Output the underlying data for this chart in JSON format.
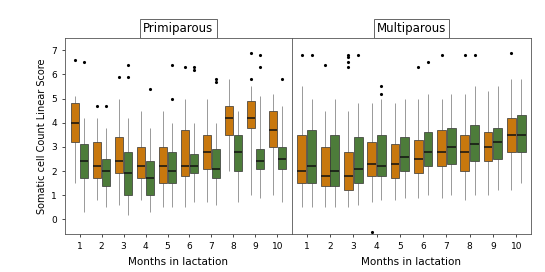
{
  "green_color": "#4d7c3a",
  "orange_color": "#c8780e",
  "whisker_color": "#999999",
  "background": "#ffffff",
  "panel_header_bg": "#f0f0f0",
  "prim_label": "Primiparous",
  "multi_label": "Multiparous",
  "xlabel": "Months in lactation",
  "ylabel": "Somatic cell Count Linear Score",
  "ylim": [
    -0.6,
    7.5
  ],
  "yticks": [
    0,
    1,
    2,
    3,
    4,
    5,
    6,
    7
  ],
  "months": [
    1,
    2,
    3,
    4,
    5,
    6,
    7,
    8,
    9,
    10
  ],
  "prim_orange": {
    "q1": [
      3.2,
      1.7,
      1.9,
      1.7,
      1.5,
      1.8,
      2.1,
      3.5,
      3.8,
      3.0
    ],
    "median": [
      4.0,
      2.2,
      2.4,
      2.2,
      2.2,
      2.2,
      2.8,
      4.2,
      4.2,
      3.7
    ],
    "q3": [
      4.8,
      3.2,
      3.4,
      3.0,
      3.0,
      3.7,
      3.5,
      4.7,
      4.9,
      4.5
    ],
    "whisk_lo": [
      1.5,
      0.8,
      0.6,
      0.8,
      0.5,
      0.5,
      0.7,
      2.0,
      1.0,
      1.0
    ],
    "whisk_hi": [
      5.1,
      4.2,
      5.0,
      4.5,
      4.5,
      5.0,
      5.0,
      5.8,
      5.5,
      5.2
    ],
    "outliers": [
      [
        6.6
      ],
      [
        4.7
      ],
      [
        5.9
      ],
      [],
      [],
      [
        6.3
      ],
      [],
      [],
      [
        6.9,
        5.8
      ],
      []
    ]
  },
  "prim_green": {
    "q1": [
      1.7,
      1.4,
      1.0,
      1.0,
      1.5,
      1.9,
      1.7,
      2.0,
      2.1,
      2.1
    ],
    "median": [
      2.4,
      2.0,
      1.9,
      1.7,
      2.0,
      2.2,
      2.1,
      2.8,
      2.4,
      2.5
    ],
    "q3": [
      3.1,
      2.5,
      2.8,
      2.4,
      2.8,
      2.7,
      2.9,
      3.5,
      2.9,
      3.0
    ],
    "whisk_lo": [
      0.3,
      0.5,
      0.2,
      0.3,
      0.5,
      0.7,
      0.6,
      0.7,
      0.9,
      0.7
    ],
    "whisk_hi": [
      4.2,
      3.8,
      4.2,
      3.8,
      4.0,
      4.0,
      4.0,
      4.5,
      5.1,
      4.7
    ],
    "outliers": [
      [
        6.5
      ],
      [
        4.7
      ],
      [
        5.9,
        6.4
      ],
      [
        5.4
      ],
      [
        5.0,
        6.4
      ],
      [
        6.2,
        6.3
      ],
      [
        5.7,
        5.8
      ],
      [],
      [
        6.8,
        6.3
      ],
      [
        5.8
      ]
    ]
  },
  "multi_orange": {
    "q1": [
      1.5,
      1.4,
      1.2,
      1.8,
      1.7,
      1.9,
      2.2,
      2.0,
      2.4,
      2.8
    ],
    "median": [
      2.0,
      1.8,
      1.8,
      2.3,
      2.3,
      2.5,
      2.8,
      2.8,
      3.0,
      3.5
    ],
    "q3": [
      3.5,
      3.0,
      2.8,
      3.2,
      3.1,
      3.3,
      3.7,
      3.5,
      3.6,
      4.2
    ],
    "whisk_lo": [
      0.5,
      0.5,
      0.5,
      0.7,
      0.8,
      0.9,
      0.9,
      0.8,
      1.0,
      1.2
    ],
    "whisk_hi": [
      5.5,
      4.5,
      4.5,
      4.8,
      4.8,
      5.0,
      5.0,
      5.2,
      5.3,
      5.8
    ],
    "outliers": [
      [
        6.8
      ],
      [
        6.4
      ],
      [
        6.8,
        6.7,
        6.5,
        6.3
      ],
      [
        -0.5
      ],
      [],
      [
        6.3
      ],
      [
        6.8
      ],
      [
        6.8
      ],
      [],
      [
        6.9
      ]
    ]
  },
  "multi_green": {
    "q1": [
      1.5,
      1.4,
      1.5,
      1.8,
      2.0,
      2.2,
      2.3,
      2.4,
      2.5,
      2.8
    ],
    "median": [
      2.2,
      2.0,
      2.1,
      2.2,
      2.6,
      2.8,
      3.0,
      3.1,
      3.2,
      3.5
    ],
    "q3": [
      3.7,
      3.5,
      3.4,
      3.5,
      3.4,
      3.6,
      3.8,
      3.9,
      3.8,
      4.3
    ],
    "whisk_lo": [
      0.5,
      0.5,
      0.6,
      0.8,
      0.9,
      1.0,
      1.0,
      1.0,
      1.2,
      1.5
    ],
    "whisk_hi": [
      5.0,
      5.0,
      4.8,
      5.0,
      5.0,
      5.2,
      5.2,
      5.5,
      5.5,
      5.8
    ],
    "outliers": [
      [
        6.8
      ],
      [],
      [
        6.8
      ],
      [
        5.5,
        5.2
      ],
      [],
      [
        6.5
      ],
      [],
      [
        6.8
      ],
      [],
      []
    ]
  }
}
